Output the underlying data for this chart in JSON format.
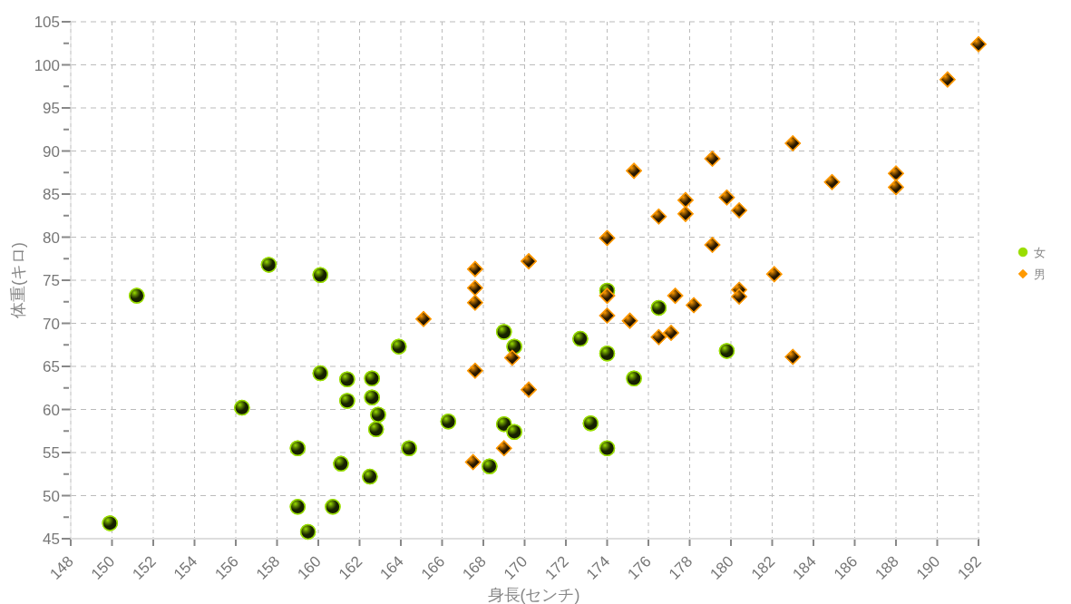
{
  "chart_data": {
    "type": "scatter",
    "xlabel": "身長(センチ)",
    "ylabel": "体重(キロ)",
    "xlim": [
      148,
      192
    ],
    "ylim": [
      45,
      105
    ],
    "xticks": [
      148,
      150,
      152,
      154,
      156,
      158,
      160,
      162,
      164,
      166,
      168,
      170,
      172,
      174,
      176,
      178,
      180,
      182,
      184,
      186,
      188,
      190,
      192
    ],
    "yticks": [
      45,
      {
        "value": 47.5,
        "label": null
      },
      50,
      {
        "value": 52.5,
        "label": null
      },
      55,
      {
        "value": 57.5,
        "label": null
      },
      60,
      {
        "value": 62.5,
        "label": null
      },
      65,
      {
        "value": 67.5,
        "label": null
      },
      70,
      {
        "value": 72.5,
        "label": null
      },
      75,
      {
        "value": 77.5,
        "label": null
      },
      80,
      {
        "value": 82.5,
        "label": null
      },
      85,
      {
        "value": 87.5,
        "label": null
      },
      90,
      {
        "value": 92.5,
        "label": null
      },
      95,
      {
        "value": 97.5,
        "label": null
      },
      100,
      {
        "value": 102.5,
        "label": null
      },
      105
    ],
    "grid": true,
    "legend": "right",
    "series": [
      {
        "name": "女",
        "color": "#99dd00",
        "marker": "circle",
        "x": [
          149.9,
          151.2,
          156.3,
          157.6,
          160.1,
          160.1,
          161.4,
          161.4,
          162.6,
          162.6,
          162.9,
          162.8,
          163.9,
          159.0,
          161.1,
          162.5,
          159.0,
          160.7,
          159.5,
          164.4,
          166.3,
          169.0,
          169.5,
          169.0,
          169.5,
          168.3,
          172.7,
          173.2,
          174.0,
          174.0,
          175.3,
          176.5,
          179.8,
          174.0
        ],
        "values": [
          46.8,
          73.2,
          60.2,
          76.8,
          75.6,
          64.2,
          63.5,
          61.0,
          63.6,
          61.4,
          59.4,
          57.7,
          67.3,
          55.5,
          53.7,
          52.2,
          48.7,
          48.7,
          45.8,
          55.5,
          58.6,
          69.0,
          67.3,
          58.3,
          57.4,
          53.4,
          68.2,
          58.4,
          66.5,
          55.5,
          63.6,
          71.8,
          66.8,
          73.8
        ]
      },
      {
        "name": "男",
        "color": "#ff9900",
        "marker": "diamond",
        "x": [
          192.0,
          190.5,
          183.0,
          179.1,
          175.3,
          184.9,
          188.0,
          188.0,
          177.8,
          179.8,
          180.4,
          176.5,
          177.8,
          174.0,
          179.1,
          170.2,
          167.6,
          167.6,
          167.6,
          182.1,
          180.4,
          180.4,
          177.3,
          174.0,
          178.2,
          177.1,
          176.5,
          174.0,
          175.1,
          165.1,
          167.6,
          169.4,
          170.2,
          183.0,
          169.0,
          167.5
        ],
        "values": [
          102.4,
          98.3,
          90.9,
          89.1,
          87.7,
          86.4,
          87.4,
          85.8,
          84.3,
          84.6,
          83.1,
          82.4,
          82.7,
          79.9,
          79.1,
          77.2,
          76.3,
          74.1,
          72.4,
          75.7,
          73.9,
          73.1,
          73.2,
          73.2,
          72.1,
          68.9,
          68.4,
          70.9,
          70.3,
          70.5,
          64.5,
          66.0,
          62.3,
          66.1,
          55.5,
          53.9
        ]
      }
    ]
  }
}
